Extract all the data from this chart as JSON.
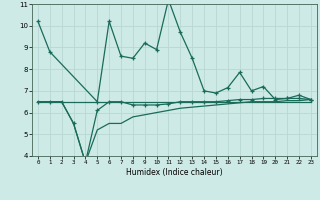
{
  "xlabel": "Humidex (Indice chaleur)",
  "x": [
    0,
    1,
    2,
    3,
    4,
    5,
    6,
    7,
    8,
    9,
    10,
    11,
    12,
    13,
    14,
    15,
    16,
    17,
    18,
    19,
    20,
    21,
    22,
    23
  ],
  "line1": [
    10.2,
    8.8,
    null,
    null,
    null,
    6.5,
    10.2,
    8.6,
    8.5,
    9.2,
    8.9,
    11.2,
    9.7,
    8.5,
    7.0,
    6.9,
    7.15,
    7.85,
    7.0,
    7.2,
    6.6,
    6.65,
    6.8,
    6.6
  ],
  "line2": [
    6.5,
    6.5,
    6.5,
    5.5,
    3.7,
    6.1,
    6.5,
    6.5,
    6.35,
    6.35,
    6.35,
    6.4,
    6.5,
    6.5,
    6.5,
    6.5,
    6.55,
    6.6,
    6.6,
    6.65,
    6.65,
    6.65,
    6.65,
    6.6
  ],
  "line3": [
    6.5,
    6.5,
    6.5,
    5.5,
    3.7,
    5.2,
    5.5,
    5.5,
    5.8,
    5.9,
    6.0,
    6.1,
    6.2,
    6.25,
    6.3,
    6.35,
    6.4,
    6.45,
    6.5,
    6.5,
    6.5,
    6.55,
    6.55,
    6.6
  ],
  "line4": [
    6.5,
    6.5,
    6.5,
    6.5,
    6.5,
    6.5,
    6.5,
    6.5,
    6.5,
    6.5,
    6.5,
    6.5,
    6.5,
    6.5,
    6.5,
    6.5,
    6.5,
    6.5,
    6.5,
    6.5,
    6.5,
    6.5,
    6.5,
    6.5
  ],
  "ylim": [
    4,
    11
  ],
  "xlim": [
    -0.5,
    23.5
  ],
  "yticks": [
    4,
    5,
    6,
    7,
    8,
    9,
    10,
    11
  ],
  "xticks": [
    0,
    1,
    2,
    3,
    4,
    5,
    6,
    7,
    8,
    9,
    10,
    11,
    12,
    13,
    14,
    15,
    16,
    17,
    18,
    19,
    20,
    21,
    22,
    23
  ],
  "line_color": "#1a6b5a",
  "bg_color": "#ceeae6",
  "grid_color": "#b8d8d2"
}
